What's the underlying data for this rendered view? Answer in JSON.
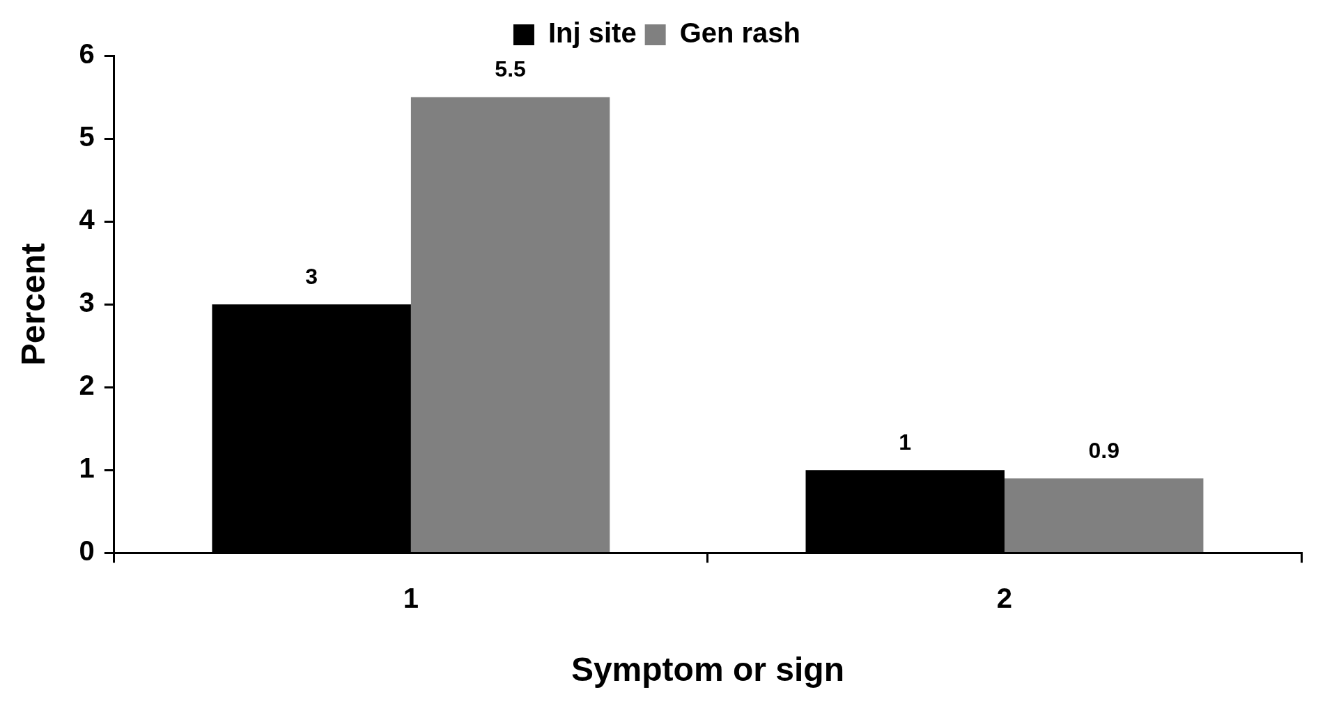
{
  "chart_data": {
    "type": "bar",
    "xlabel": "Symptom or sign",
    "ylabel": "Percent",
    "categories": [
      "1",
      "2"
    ],
    "series": [
      {
        "name": "Inj site",
        "color": "#000000",
        "values": [
          3,
          1
        ]
      },
      {
        "name": "Gen rash",
        "color": "#808080",
        "values": [
          5.5,
          0.9
        ]
      }
    ],
    "ylim": [
      0,
      6
    ],
    "yticks": [
      0,
      1,
      2,
      3,
      4,
      5,
      6
    ],
    "grid": false,
    "legend": "top",
    "data_labels": true
  }
}
